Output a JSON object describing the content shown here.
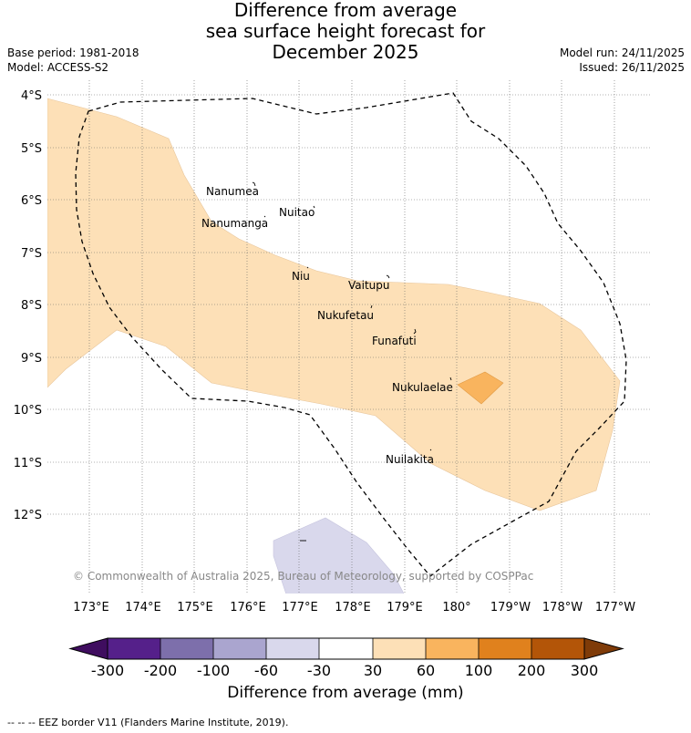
{
  "title": {
    "line1": "Difference from average",
    "line2": "sea surface height forecast for",
    "line3": "December 2025"
  },
  "meta": {
    "base_period": "Base period: 1981-2018",
    "model": "Model: ACCESS-S2",
    "model_run": "Model run: 24/11/2025",
    "issued": "Issued: 26/11/2025"
  },
  "map": {
    "lat_labels": [
      "4°S",
      "5°S",
      "6°S",
      "7°S",
      "8°S",
      "9°S",
      "10°S",
      "11°S",
      "12°S"
    ],
    "lon_labels": [
      "173°E",
      "174°E",
      "175°E",
      "176°E",
      "177°E",
      "178°E",
      "179°E",
      "180°",
      "179°W",
      "178°W",
      "177°W"
    ],
    "islands": [
      "Nanumea",
      "Nuitao",
      "Nanumanga",
      "Niu",
      "Vaitupu",
      "Nukufetau",
      "Funafuti",
      "Nukulaelae",
      "Nuilakita"
    ],
    "copyright": "© Commonwealth of Australia 2025, Bureau of Meteorology, supported by COSPPac",
    "anomaly_regions": [
      {
        "category": "30 to 60",
        "color": "#fde0b7"
      },
      {
        "category": "60 to 100",
        "color": "#f9b45e"
      },
      {
        "category": "-60 to -30",
        "color": "#d9d8ec"
      }
    ]
  },
  "colorbar": {
    "tick_labels": [
      "-300",
      "-200",
      "-100",
      "-60",
      "-30",
      "30",
      "60",
      "100",
      "200",
      "300"
    ],
    "colors": [
      "#3f0d5f",
      "#55208a",
      "#7d6fab",
      "#aaa5cf",
      "#d9d8ec",
      "#ffffff",
      "#fde0b7",
      "#f9b45e",
      "#e0811d",
      "#b35508",
      "#7f3b08"
    ],
    "title": "Difference from average (mm)"
  },
  "footer": "--  --  -- EEZ border V11 (Flanders Marine Institute, 2019)."
}
